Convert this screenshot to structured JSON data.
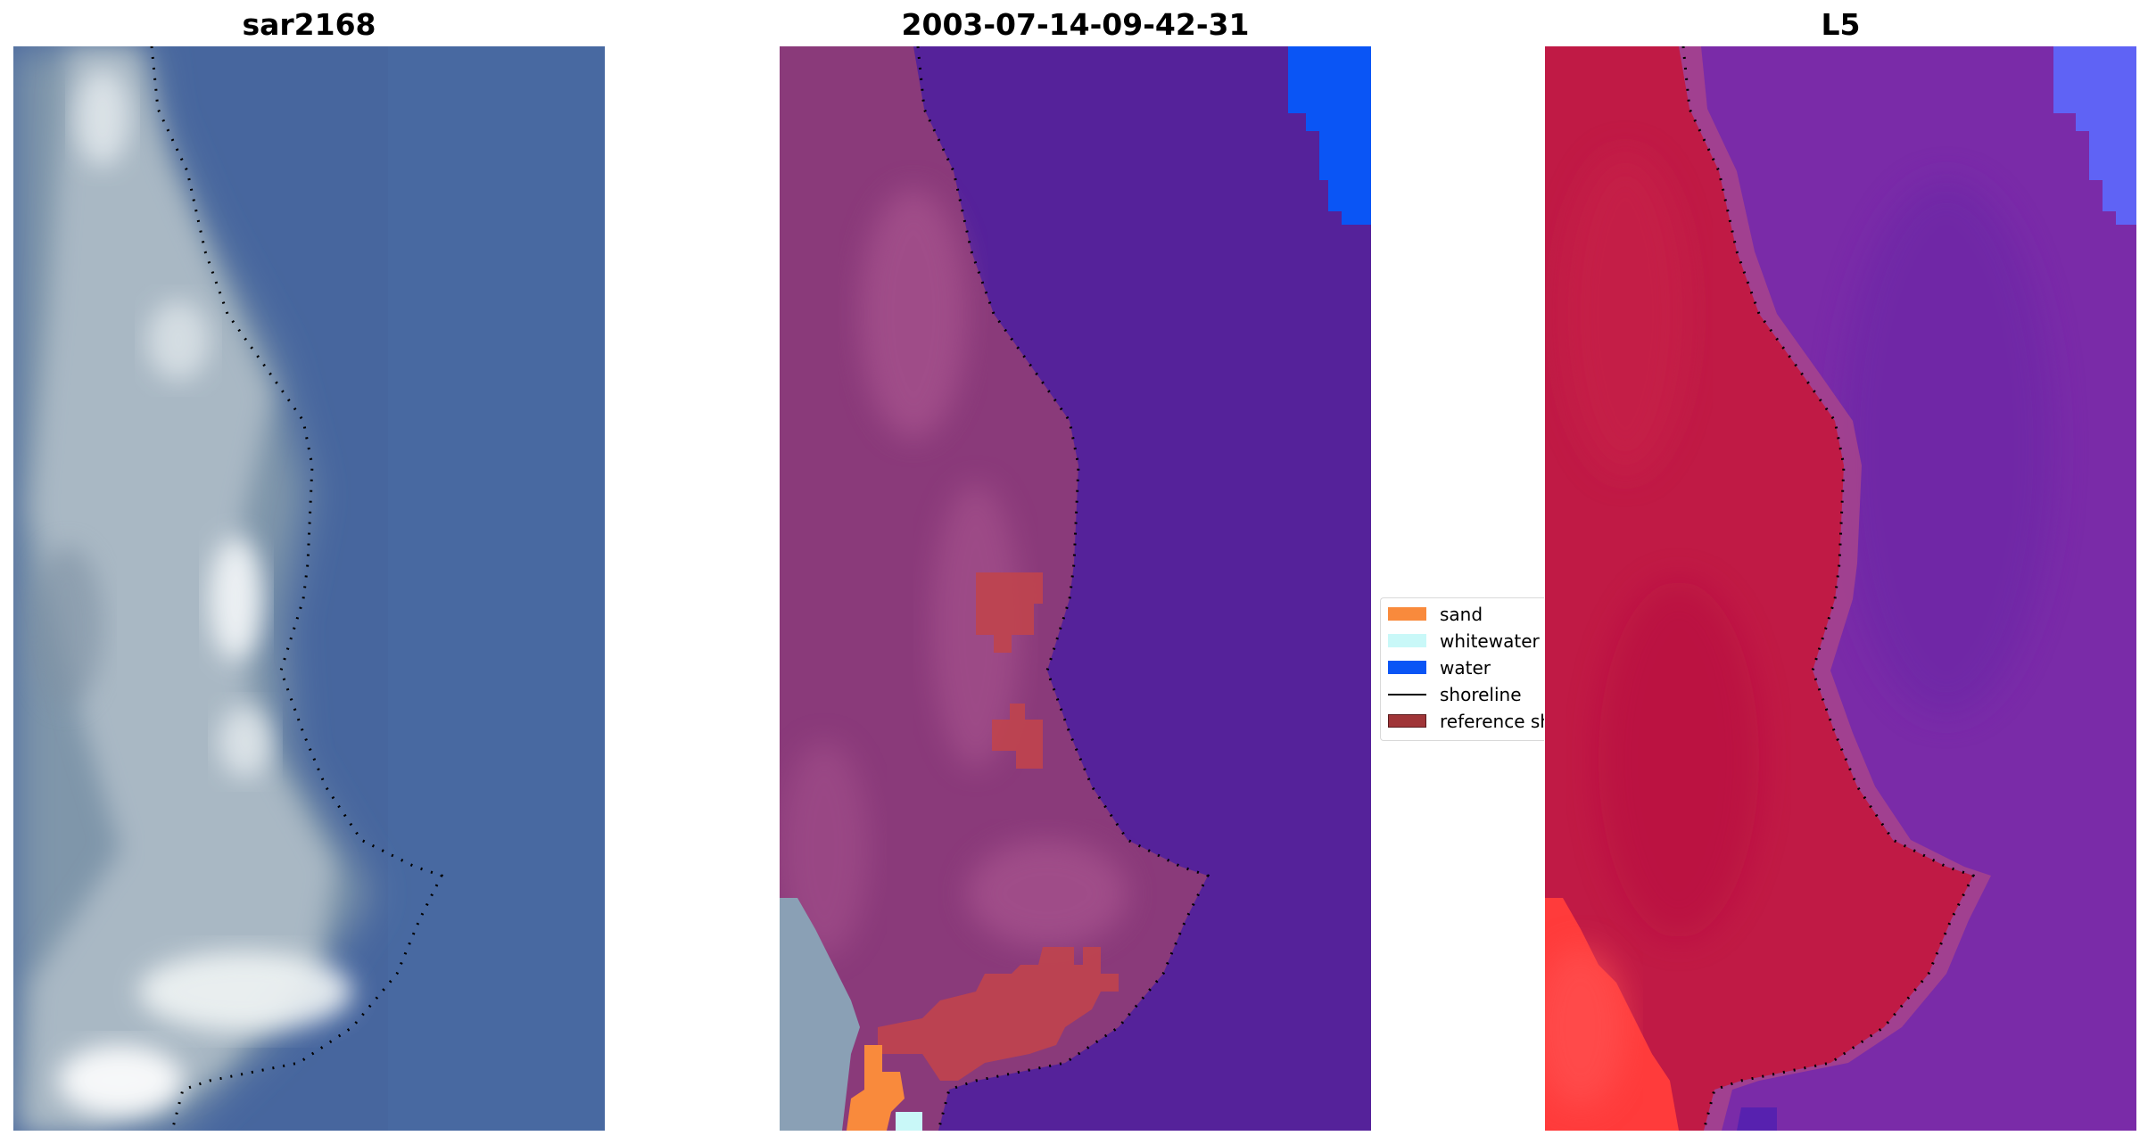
{
  "panels": [
    {
      "title": "sar2168"
    },
    {
      "title": "2003-07-14-09-42-31"
    },
    {
      "title": "L5"
    }
  ],
  "legend": {
    "items": [
      {
        "label": "sand",
        "kind": "patch",
        "color": "#f98a3c"
      },
      {
        "label": "whitewater",
        "kind": "patch",
        "color": "#c9f8f8"
      },
      {
        "label": "water",
        "kind": "patch",
        "color": "#0a55f5"
      },
      {
        "label": "shoreline",
        "kind": "line",
        "color": "#000000"
      },
      {
        "label": "reference shoreline buffer",
        "kind": "patch",
        "color": "#a03538"
      }
    ]
  },
  "colors": {
    "rgb_water": "#47669e",
    "rgb_land": "#a9b8c4",
    "rgb_whitewater": "#e6ecef",
    "class_land_overlay": "#8a3a7a",
    "class_land_light": "#a9558f",
    "class_water_overlay": "#55229a",
    "class_water_solid": "#0a55f5",
    "class_buffer": "#c0444c",
    "class_sand": "#f98a3c",
    "class_whitewater": "#c9f8f8",
    "index_land": "#c01a45",
    "index_land_bright": "#ff3b3b",
    "index_water": "#7a2ba8",
    "index_water_blue": "#5f63f5"
  }
}
